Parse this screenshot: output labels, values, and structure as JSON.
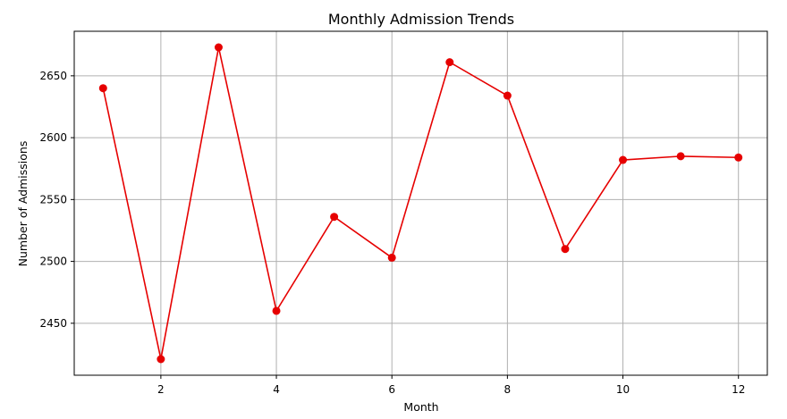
{
  "chart_data": {
    "type": "line",
    "title": "Monthly Admission Trends",
    "xlabel": "Month",
    "ylabel": "Number of Admissions",
    "xlim": [
      0.5,
      12.5
    ],
    "ylim": [
      2408,
      2686
    ],
    "xticks": [
      2,
      4,
      6,
      8,
      10,
      12
    ],
    "yticks": [
      2450,
      2500,
      2550,
      2600,
      2650
    ],
    "grid": true,
    "series": [
      {
        "color": "#e60000",
        "marker": "circle",
        "x": [
          1,
          2,
          3,
          4,
          5,
          6,
          7,
          8,
          9,
          10,
          11,
          12
        ],
        "values": [
          2640,
          2421,
          2673,
          2460,
          2536,
          2503,
          2661,
          2634,
          2510,
          2582,
          2585,
          2584
        ]
      }
    ]
  },
  "colors": {
    "line": "#e60000",
    "grid": "#b0b0b0",
    "axes": "#000000",
    "background": "#ffffff"
  }
}
